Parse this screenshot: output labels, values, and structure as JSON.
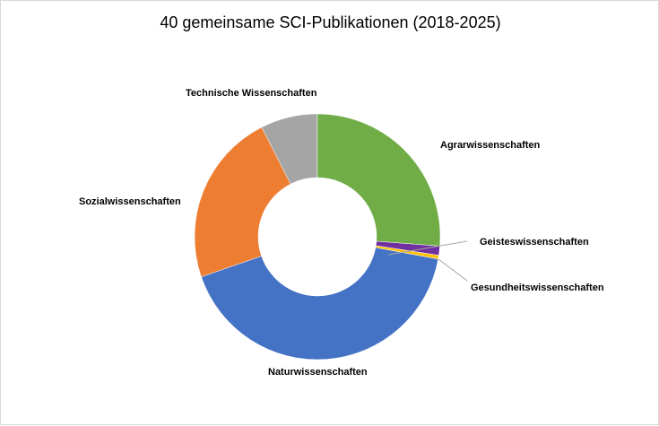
{
  "chart_data": {
    "type": "pie",
    "variant": "donut",
    "title": "40 gemeinsame SCI-Publikationen (2018-2025)",
    "unit": "percent share (estimated)",
    "categories": [
      "Agrarwissenschaften",
      "Geisteswissenschaften",
      "Gesundheitswissenschaften",
      "Naturwissenschaften",
      "Sozialwissenschaften",
      "Technische Wissenschaften"
    ],
    "values": [
      26.2,
      1.2,
      0.5,
      41.8,
      22.8,
      7.5
    ],
    "colors": [
      "#70ad47",
      "#7030a0",
      "#ffc000",
      "#4472c4",
      "#ed7d31",
      "#a5a5a5"
    ],
    "legend": "none (data labels outside)"
  }
}
